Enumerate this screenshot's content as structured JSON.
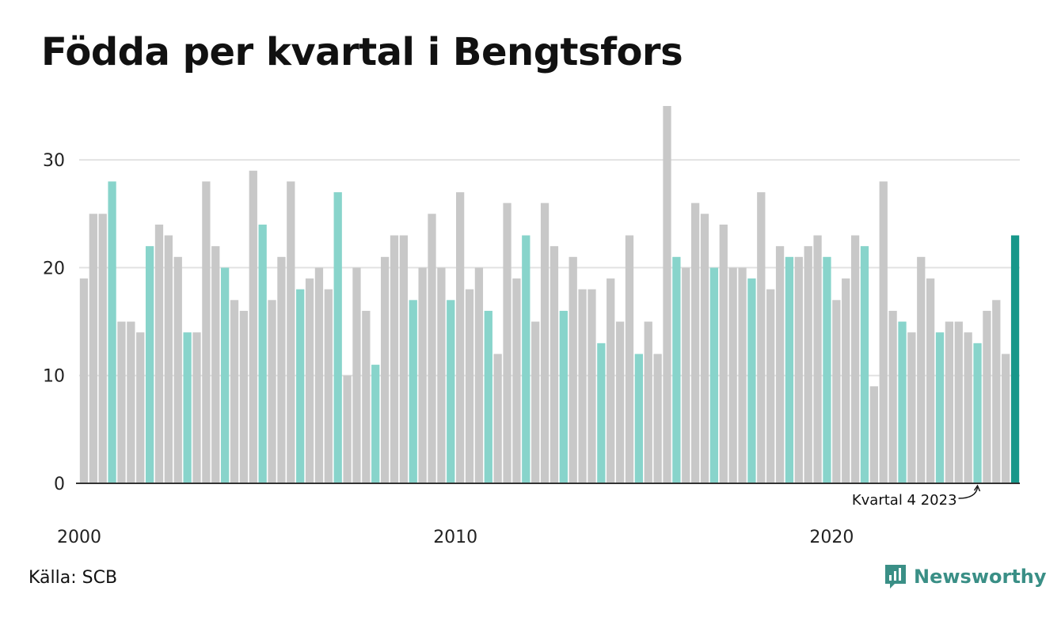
{
  "title": "Födda per kvartal i Bengtsfors",
  "source": "Källa: SCB",
  "brand": {
    "name": "Newsworthy",
    "icon": "newsworthy-logo-icon",
    "color": "#3a8f86"
  },
  "colors": {
    "default": "#c8c8c8",
    "q4": "#88d4cb",
    "highlight": "#17978a",
    "grid": "#e2e2e2",
    "axis": "#333333"
  },
  "chart_data": {
    "type": "bar",
    "title": "Födda per kvartal i Bengtsfors",
    "xlabel": "",
    "ylabel": "",
    "ylim": [
      0,
      35
    ],
    "yticks": [
      0,
      10,
      20,
      30
    ],
    "xtick_labels": [
      {
        "label": "2000",
        "year": 2000
      },
      {
        "label": "2010",
        "year": 2010
      },
      {
        "label": "2020",
        "year": 2020
      }
    ],
    "start_year": 2000,
    "grid": true,
    "legend": "none",
    "annotation": {
      "text": "Kvartal 4 2023",
      "year": 2023,
      "quarter": 4
    },
    "values": [
      19,
      25,
      25,
      28,
      15,
      15,
      14,
      22,
      24,
      23,
      21,
      14,
      14,
      28,
      22,
      20,
      17,
      16,
      29,
      24,
      17,
      21,
      28,
      18,
      19,
      20,
      18,
      27,
      10,
      20,
      16,
      11,
      21,
      23,
      23,
      17,
      20,
      25,
      20,
      17,
      27,
      18,
      20,
      16,
      12,
      26,
      19,
      23,
      15,
      26,
      22,
      16,
      21,
      18,
      18,
      13,
      19,
      15,
      23,
      12,
      15,
      12,
      35,
      21,
      20,
      26,
      25,
      20,
      24,
      20,
      20,
      19,
      27,
      18,
      22,
      21,
      21,
      22,
      23,
      21,
      17,
      19,
      23,
      22,
      9,
      28,
      16,
      15,
      14,
      21,
      19,
      14,
      15,
      15,
      14,
      13,
      16,
      17,
      12,
      23
    ]
  }
}
